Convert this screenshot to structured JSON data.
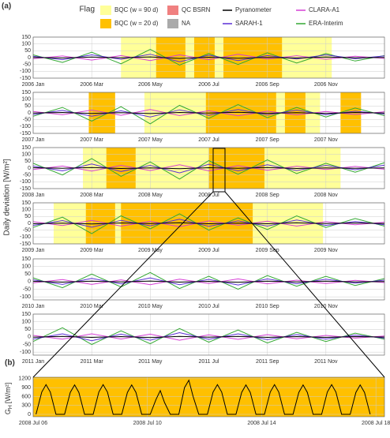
{
  "chart_data": [
    {
      "type": "line",
      "label": "(a)",
      "ylabel": "Daily deviation [W/m²]",
      "flag_title": "Flag",
      "flags": [
        {
          "name": "BQC (w = 90 d)",
          "color": "#ffff99"
        },
        {
          "name": "BQC (w = 20 d)",
          "color": "#ffc000"
        },
        {
          "name": "QC BSRN",
          "color": "#f08080"
        },
        {
          "name": "NA",
          "color": "#aaaaaa"
        }
      ],
      "x": [
        0,
        1,
        2,
        3,
        4,
        5,
        6,
        7,
        8,
        9,
        10,
        11,
        12
      ],
      "series": [
        {
          "name": "Pyranometer",
          "color": "#000000",
          "values": [
            2,
            -3,
            4,
            -2,
            5,
            -6,
            3,
            -4,
            2,
            -3,
            4,
            -2,
            1
          ]
        },
        {
          "name": "SARAH-1",
          "color": "#5b2fd6",
          "values": [
            10,
            -15,
            20,
            -12,
            25,
            -30,
            18,
            -22,
            15,
            -10,
            20,
            -8,
            12
          ]
        },
        {
          "name": "CLARA-A1",
          "color": "#d63fd6",
          "values": [
            -8,
            12,
            -18,
            15,
            -22,
            20,
            -15,
            25,
            -10,
            14,
            -12,
            10,
            -6
          ]
        },
        {
          "name": "ERA-Interim",
          "color": "#33a833",
          "values": [
            20,
            -35,
            40,
            -45,
            60,
            -55,
            30,
            -50,
            35,
            -40,
            30,
            -25,
            15
          ]
        }
      ],
      "regions": [
        {
          "start": 3.0,
          "end": 10.2,
          "flag": 0
        },
        {
          "start": 4.2,
          "end": 5.2,
          "flag": 1
        },
        {
          "start": 5.5,
          "end": 6.2,
          "flag": 1
        },
        {
          "start": 6.5,
          "end": 8.5,
          "flag": 1
        }
      ],
      "xlim": [
        0,
        12
      ],
      "xticks": [
        {
          "value": 0,
          "label": "2006 Jan"
        },
        {
          "value": 2,
          "label": "2006 Mar"
        },
        {
          "value": 4,
          "label": "2006 May"
        },
        {
          "value": 6,
          "label": "2006 Jul"
        },
        {
          "value": 8,
          "label": "2006 Sep"
        },
        {
          "value": 10,
          "label": "2006 Nov"
        }
      ],
      "ylim": [
        -150,
        150
      ],
      "yticks": [
        150,
        100,
        50,
        0,
        -50,
        -100,
        -150
      ]
    },
    {
      "type": "line",
      "x": [
        0,
        1,
        2,
        3,
        4,
        5,
        6,
        7,
        8,
        9,
        10,
        11,
        12
      ],
      "series": [
        {
          "values": [
            -2,
            3,
            -4,
            2,
            -5,
            3,
            -2,
            4,
            -3,
            2,
            -4,
            3,
            -1
          ]
        },
        {
          "values": [
            -12,
            18,
            -25,
            15,
            -30,
            22,
            -18,
            25,
            -15,
            20,
            -14,
            12,
            -8
          ]
        },
        {
          "values": [
            10,
            -14,
            20,
            -18,
            25,
            -20,
            16,
            -22,
            12,
            -15,
            10,
            -12,
            8
          ]
        },
        {
          "values": [
            -25,
            40,
            -60,
            45,
            -80,
            55,
            -40,
            60,
            -35,
            40,
            -30,
            35,
            -20
          ]
        }
      ],
      "regions": [
        {
          "start": 3.8,
          "end": 9.8,
          "flag": 0
        },
        {
          "start": 1.9,
          "end": 2.8,
          "flag": 1
        },
        {
          "start": 5.9,
          "end": 8.3,
          "flag": 1
        },
        {
          "start": 8.6,
          "end": 9.3,
          "flag": 1
        },
        {
          "start": 10.5,
          "end": 11.2,
          "flag": 1
        }
      ],
      "xlim": [
        0,
        12
      ],
      "xticks": [
        {
          "value": 0,
          "label": "2007 Jan"
        },
        {
          "value": 2,
          "label": "2007 Mar"
        },
        {
          "value": 4,
          "label": "2007 May"
        },
        {
          "value": 6,
          "label": "2007 Jul"
        },
        {
          "value": 8,
          "label": "2007 Sep"
        },
        {
          "value": 10,
          "label": "2007 Nov"
        }
      ],
      "ylim": [
        -150,
        150
      ],
      "yticks": [
        150,
        100,
        50,
        0,
        -50,
        -100,
        -150
      ]
    },
    {
      "type": "line",
      "x": [
        0,
        1,
        2,
        3,
        4,
        5,
        6,
        7,
        8,
        9,
        10,
        11,
        12
      ],
      "series": [
        {
          "values": [
            3,
            -2,
            4,
            -3,
            2,
            -4,
            3,
            -2,
            4,
            -3,
            2,
            -2,
            2
          ]
        },
        {
          "values": [
            15,
            -20,
            30,
            -25,
            20,
            -35,
            28,
            -20,
            25,
            -18,
            20,
            -12,
            22
          ]
        },
        {
          "values": [
            -10,
            15,
            -22,
            20,
            -18,
            25,
            -20,
            18,
            -16,
            14,
            -10,
            12,
            -8
          ]
        },
        {
          "values": [
            35,
            -50,
            70,
            -60,
            45,
            -80,
            55,
            -45,
            60,
            -40,
            35,
            -30,
            40
          ]
        }
      ],
      "regions": [
        {
          "start": 1.7,
          "end": 10.5,
          "flag": 0
        },
        {
          "start": 2.5,
          "end": 3.5,
          "flag": 1
        },
        {
          "start": 6.0,
          "end": 7.9,
          "flag": 1
        }
      ],
      "xlim": [
        0,
        12
      ],
      "xticks": [
        {
          "value": 0,
          "label": "2008 Jan"
        },
        {
          "value": 2,
          "label": "2008 Mar"
        },
        {
          "value": 4,
          "label": "2008 May"
        },
        {
          "value": 6,
          "label": "2008 Jul"
        },
        {
          "value": 8,
          "label": "2008 Sep"
        },
        {
          "value": 10,
          "label": "2008 Nov"
        }
      ],
      "ylim": [
        -150,
        150
      ],
      "yticks": [
        150,
        100,
        50,
        0,
        -50,
        -100,
        -150
      ]
    },
    {
      "type": "line",
      "x": [
        0,
        1,
        2,
        3,
        4,
        5,
        6,
        7,
        8,
        9,
        10,
        11,
        12
      ],
      "series": [
        {
          "values": [
            -3,
            2,
            -4,
            3,
            -2,
            4,
            -3,
            2,
            -3,
            4,
            -2,
            3,
            -1
          ]
        },
        {
          "values": [
            -15,
            20,
            -28,
            22,
            -18,
            30,
            -22,
            18,
            -20,
            25,
            -15,
            14,
            -10
          ]
        },
        {
          "values": [
            12,
            -16,
            22,
            -20,
            15,
            -24,
            18,
            -14,
            16,
            -20,
            12,
            -10,
            8
          ]
        },
        {
          "values": [
            -30,
            45,
            -75,
            55,
            -40,
            70,
            -50,
            40,
            -45,
            55,
            -30,
            35,
            -20
          ]
        }
      ],
      "regions": [
        {
          "start": 0.7,
          "end": 9.9,
          "flag": 0
        },
        {
          "start": 1.8,
          "end": 2.8,
          "flag": 1
        },
        {
          "start": 3.0,
          "end": 7.5,
          "flag": 1
        }
      ],
      "xlim": [
        0,
        12
      ],
      "xticks": [
        {
          "value": 0,
          "label": "2009 Jan"
        },
        {
          "value": 2,
          "label": "2009 Mar"
        },
        {
          "value": 4,
          "label": "2009 May"
        },
        {
          "value": 6,
          "label": "2009 Jul"
        },
        {
          "value": 8,
          "label": "2009 Sep"
        },
        {
          "value": 10,
          "label": "2009 Nov"
        }
      ],
      "ylim": [
        -150,
        150
      ],
      "yticks": [
        150,
        100,
        50,
        0,
        -50,
        -100,
        -150
      ]
    },
    {
      "type": "line",
      "x": [
        0,
        1,
        2,
        3,
        4,
        5,
        6,
        7,
        8,
        9,
        10,
        11,
        12
      ],
      "series": [
        {
          "values": [
            2,
            -3,
            3,
            -2,
            4,
            -3,
            2,
            -4,
            3,
            -2,
            3,
            -2,
            1
          ]
        },
        {
          "values": [
            12,
            -18,
            22,
            -15,
            25,
            -20,
            15,
            -22,
            18,
            -14,
            16,
            -10,
            10
          ]
        },
        {
          "values": [
            -8,
            14,
            -18,
            12,
            -20,
            16,
            -12,
            18,
            -14,
            10,
            -12,
            8,
            -6
          ]
        },
        {
          "values": [
            25,
            -40,
            50,
            -35,
            60,
            -45,
            35,
            -50,
            40,
            -30,
            35,
            -25,
            20
          ]
        }
      ],
      "regions": [],
      "xlim": [
        0,
        12
      ],
      "xticks": [
        {
          "value": 0,
          "label": "2010 Jan"
        },
        {
          "value": 2,
          "label": "2010 Mar"
        },
        {
          "value": 4,
          "label": "2010 May"
        },
        {
          "value": 6,
          "label": "2010 Jul"
        },
        {
          "value": 8,
          "label": "2010 Sep"
        },
        {
          "value": 10,
          "label": "2010 Nov"
        }
      ],
      "ylim": [
        -120,
        150
      ],
      "yticks": [
        150,
        100,
        50,
        0,
        -50,
        -100
      ]
    },
    {
      "type": "line",
      "x": [
        0,
        1,
        2,
        3,
        4,
        5,
        6,
        7,
        8,
        9,
        10,
        11,
        12
      ],
      "series": [
        {
          "values": [
            -2,
            3,
            -3,
            2,
            -4,
            3,
            -2,
            3,
            -3,
            2,
            -3,
            2,
            -1
          ]
        },
        {
          "values": [
            -14,
            20,
            -25,
            18,
            -22,
            28,
            -16,
            20,
            -18,
            15,
            -14,
            12,
            -8
          ]
        },
        {
          "values": [
            10,
            -15,
            20,
            -14,
            18,
            -22,
            14,
            -16,
            15,
            -12,
            10,
            -8,
            6
          ]
        },
        {
          "values": [
            -30,
            60,
            -50,
            40,
            -45,
            55,
            -35,
            45,
            -40,
            30,
            -30,
            25,
            -15
          ]
        }
      ],
      "regions": [],
      "xlim": [
        0,
        12
      ],
      "xticks": [
        {
          "value": 0,
          "label": "2011 Jan"
        },
        {
          "value": 2,
          "label": "2011 Mar"
        },
        {
          "value": 4,
          "label": "2011 May"
        },
        {
          "value": 6,
          "label": "2011 Jul"
        },
        {
          "value": 8,
          "label": "2011 Sep"
        },
        {
          "value": 10,
          "label": "2011 Nov"
        }
      ],
      "ylim": [
        -120,
        150
      ],
      "yticks": [
        150,
        100,
        50,
        0,
        -50,
        -100
      ]
    },
    {
      "type": "line",
      "label": "(b)",
      "ylabel_main": "G",
      "ylabel_sub": "H",
      "ylabel_unit": "[W/m²]",
      "x": [
        6.1,
        6.3,
        6.45,
        6.6,
        6.8,
        7.1,
        7.3,
        7.45,
        7.6,
        7.8,
        8.1,
        8.3,
        8.45,
        8.6,
        8.8,
        9.1,
        9.3,
        9.45,
        9.6,
        9.8,
        10.1,
        10.3,
        10.45,
        10.6,
        10.8,
        11.1,
        11.3,
        11.45,
        11.6,
        11.8,
        12.1,
        12.3,
        12.45,
        12.6,
        12.8,
        13.1,
        13.3,
        13.45,
        13.6,
        13.8,
        14.1,
        14.3,
        14.45,
        14.6,
        14.8,
        15.1,
        15.3,
        15.45,
        15.6,
        15.8,
        16.1,
        16.3,
        16.45,
        16.6,
        16.8,
        17.1,
        17.3,
        17.45,
        17.6,
        17.8
      ],
      "series": [
        {
          "color": "#000000",
          "values": [
            0,
            750,
            1000,
            750,
            0,
            0,
            740,
            990,
            740,
            0,
            0,
            750,
            1000,
            750,
            0,
            0,
            740,
            990,
            740,
            0,
            0,
            500,
            800,
            400,
            0,
            0,
            900,
            1150,
            600,
            0,
            0,
            750,
            1000,
            750,
            0,
            0,
            740,
            990,
            740,
            0,
            0,
            750,
            1000,
            750,
            0,
            0,
            740,
            990,
            740,
            0,
            0,
            750,
            1000,
            750,
            0,
            0,
            740,
            990,
            740,
            0
          ]
        }
      ],
      "regions": [
        {
          "start": 6,
          "end": 18.3,
          "flag": 1
        }
      ],
      "xlim": [
        6,
        18.3
      ],
      "xticks": [
        {
          "value": 6,
          "label": "2008 Jul 06"
        },
        {
          "value": 10,
          "label": "2008 Jul 10"
        },
        {
          "value": 14,
          "label": "2008 Jul 14"
        },
        {
          "value": 18,
          "label": "2008 Jul 18"
        }
      ],
      "ylim": [
        -80,
        1250
      ],
      "yticks": [
        0,
        300,
        600,
        900,
        1200
      ]
    }
  ]
}
